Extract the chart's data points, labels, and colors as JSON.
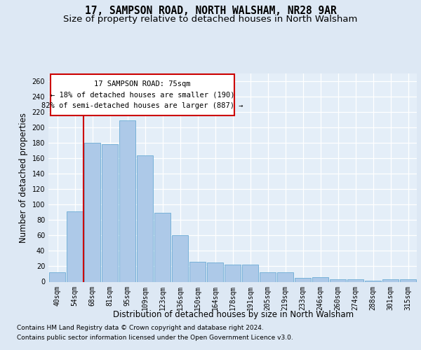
{
  "title": "17, SAMPSON ROAD, NORTH WALSHAM, NR28 9AR",
  "subtitle": "Size of property relative to detached houses in North Walsham",
  "xlabel": "Distribution of detached houses by size in North Walsham",
  "ylabel": "Number of detached properties",
  "categories": [
    "40sqm",
    "54sqm",
    "68sqm",
    "81sqm",
    "95sqm",
    "109sqm",
    "123sqm",
    "136sqm",
    "150sqm",
    "164sqm",
    "178sqm",
    "191sqm",
    "205sqm",
    "219sqm",
    "233sqm",
    "246sqm",
    "260sqm",
    "274sqm",
    "288sqm",
    "301sqm",
    "315sqm"
  ],
  "values": [
    12,
    91,
    180,
    178,
    209,
    164,
    89,
    60,
    26,
    25,
    22,
    22,
    12,
    12,
    5,
    6,
    3,
    3,
    1,
    3,
    3
  ],
  "bar_color": "#adc9e8",
  "bar_edge_color": "#6aaad4",
  "vline_x": 1.5,
  "vline_color": "#cc0000",
  "annotation_text": "17 SAMPSON ROAD: 75sqm\n← 18% of detached houses are smaller (190)\n82% of semi-detached houses are larger (887) →",
  "annotation_box_color": "#ffffff",
  "annotation_box_edge": "#cc0000",
  "ylim": [
    0,
    270
  ],
  "yticks": [
    0,
    20,
    40,
    60,
    80,
    100,
    120,
    140,
    160,
    180,
    200,
    220,
    240,
    260
  ],
  "bg_color": "#dde8f4",
  "plot_bg_color": "#e4eef8",
  "footer1": "Contains HM Land Registry data © Crown copyright and database right 2024.",
  "footer2": "Contains public sector information licensed under the Open Government Licence v3.0.",
  "title_fontsize": 10.5,
  "subtitle_fontsize": 9.5,
  "xlabel_fontsize": 8.5,
  "ylabel_fontsize": 8.5,
  "tick_fontsize": 7,
  "footer_fontsize": 6.5,
  "annot_fontsize": 7.5
}
